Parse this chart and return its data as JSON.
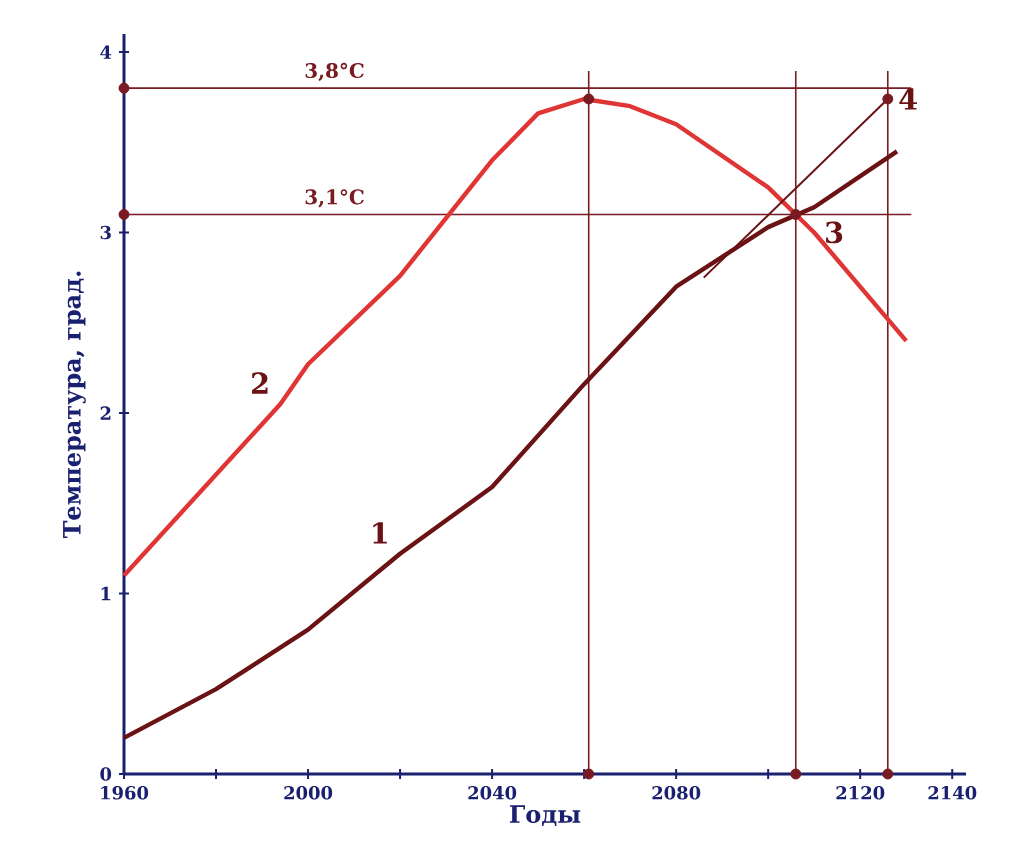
{
  "chart_data": {
    "type": "line",
    "xlabel": "Годы",
    "ylabel": "Температура, град.",
    "xlim": [
      1960,
      2143
    ],
    "ylim": [
      0,
      4.1
    ],
    "xticks": [
      1960,
      {
        "value": 1980,
        "label": null
      },
      2000,
      {
        "value": 2020,
        "label": null
      },
      2040,
      {
        "value": 2060,
        "label": null
      },
      2080,
      {
        "value": 2100,
        "label": null
      },
      2120,
      2140
    ],
    "yticks": [
      0,
      1,
      2,
      3,
      4
    ],
    "grid": false,
    "line_style": "solid",
    "series": [
      {
        "color": "#6b1214",
        "x": [
          1960,
          1980,
          2000,
          2020,
          2040,
          2060,
          2080,
          2100,
          2110,
          2128
        ],
        "values": [
          0.2,
          0.47,
          0.8,
          1.22,
          1.59,
          2.16,
          2.7,
          3.03,
          3.14,
          3.45
        ]
      },
      {
        "color": "#e03535",
        "x": [
          1960,
          1994,
          2000,
          2020,
          2040,
          2050,
          2060,
          2070,
          2080,
          2100,
          2110,
          2130
        ],
        "values": [
          1.1,
          2.05,
          2.27,
          2.76,
          3.4,
          3.66,
          3.74,
          3.7,
          3.6,
          3.25,
          3.0,
          2.4
        ]
      },
      {
        "color": "#6b1214",
        "x": [
          2086,
          2126
        ],
        "values": [
          2.75,
          3.74
        ]
      },
      {
        "type": "scatter",
        "color": "#7a1a22",
        "x": [
          1960,
          1960,
          2061,
          2106,
          2126,
          2061,
          2106,
          2126
        ],
        "values": [
          3.8,
          3.1,
          0,
          0,
          0,
          3.74,
          3.1,
          3.74
        ]
      }
    ],
    "ref_lines": [
      {
        "axis": "y",
        "value": 3.8,
        "label": "3,8°C",
        "color": "#7a1a22"
      },
      {
        "axis": "y",
        "value": 3.1,
        "label": "3,1°C",
        "color": "#7a1a22"
      },
      {
        "axis": "x",
        "value": 2061,
        "color": "#7a1a22"
      },
      {
        "axis": "x",
        "value": 2106,
        "color": "#7a1a22"
      },
      {
        "axis": "x",
        "value": 2126,
        "color": "#7a1a22"
      }
    ],
    "annotations": [
      {
        "text": "1",
        "x": 2020,
        "y": 1.22
      },
      {
        "text": "2",
        "x": 1994,
        "y": 2.05
      },
      {
        "text": "3",
        "x": 2106,
        "y": 3.1
      },
      {
        "text": "4",
        "x": 2126,
        "y": 3.74
      }
    ]
  }
}
